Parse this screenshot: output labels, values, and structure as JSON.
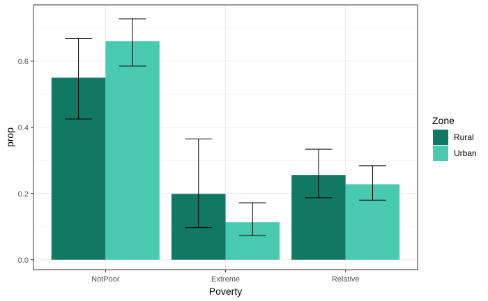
{
  "chart_data": {
    "type": "bar",
    "title": "",
    "xlabel": "Poverty",
    "ylabel": "prop",
    "categories": [
      "NotPoor",
      "Extreme",
      "Relative"
    ],
    "ylim": [
      -0.03,
      0.77
    ],
    "yticks": [
      0.0,
      0.2,
      0.4,
      0.6
    ],
    "ytick_labels": [
      "0.0",
      "0.2",
      "0.4",
      "0.6"
    ],
    "grid": true,
    "legend": {
      "title": "Zone",
      "position": "right"
    },
    "series": [
      {
        "name": "Rural",
        "color": "#117864",
        "values": [
          0.55,
          0.199,
          0.256
        ],
        "error_low": [
          0.425,
          0.097,
          0.187
        ],
        "error_high": [
          0.668,
          0.365,
          0.334
        ]
      },
      {
        "name": "Urban",
        "color": "#48C9B0",
        "values": [
          0.66,
          0.113,
          0.228
        ],
        "error_low": [
          0.585,
          0.073,
          0.18
        ],
        "error_high": [
          0.728,
          0.172,
          0.284
        ]
      }
    ]
  }
}
